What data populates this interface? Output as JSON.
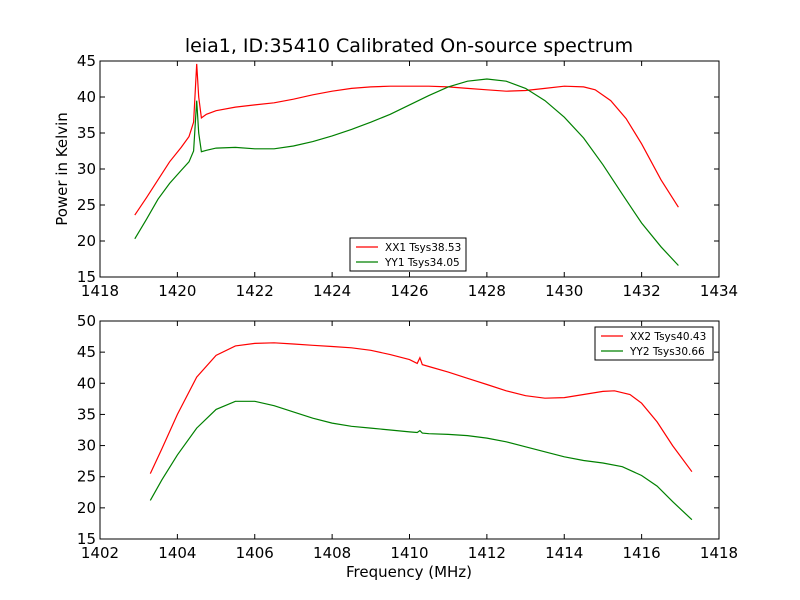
{
  "title": "leia1, ID:35410 Calibrated On-source spectrum",
  "ylabel": "Power in Kelvin",
  "xlabel": "Frequency (MHz)",
  "chart_data": [
    {
      "type": "line",
      "xlim": [
        1418,
        1434
      ],
      "ylim": [
        15,
        45
      ],
      "xticks": [
        1418,
        1420,
        1422,
        1424,
        1426,
        1428,
        1430,
        1432,
        1434
      ],
      "yticks": [
        15,
        20,
        25,
        30,
        35,
        40,
        45
      ],
      "legend_position": "lower-center",
      "series": [
        {
          "name": "XX1 Tsys38.53",
          "color": "#ff0000",
          "x": [
            1418.9,
            1419.2,
            1419.5,
            1419.8,
            1420.1,
            1420.3,
            1420.42,
            1420.5,
            1420.55,
            1420.62,
            1420.75,
            1421.0,
            1421.5,
            1422.0,
            1422.5,
            1423.0,
            1423.5,
            1424.0,
            1424.5,
            1425.0,
            1425.5,
            1426.0,
            1426.5,
            1427.0,
            1427.5,
            1428.0,
            1428.5,
            1429.0,
            1429.5,
            1430.0,
            1430.5,
            1430.8,
            1431.2,
            1431.6,
            1432.0,
            1432.5,
            1432.95
          ],
          "y": [
            23.6,
            26.0,
            28.5,
            31.0,
            33.0,
            34.5,
            36.5,
            44.6,
            40.0,
            37.1,
            37.6,
            38.1,
            38.6,
            38.9,
            39.2,
            39.7,
            40.3,
            40.8,
            41.2,
            41.4,
            41.5,
            41.5,
            41.5,
            41.4,
            41.2,
            41.0,
            40.8,
            40.9,
            41.2,
            41.5,
            41.4,
            41.0,
            39.5,
            37.0,
            33.5,
            28.5,
            24.7
          ]
        },
        {
          "name": "YY1 Tsys34.05",
          "color": "#008000",
          "x": [
            1418.9,
            1419.2,
            1419.5,
            1419.8,
            1420.1,
            1420.3,
            1420.42,
            1420.5,
            1420.55,
            1420.62,
            1420.75,
            1421.0,
            1421.5,
            1422.0,
            1422.5,
            1423.0,
            1423.5,
            1424.0,
            1424.5,
            1425.0,
            1425.5,
            1426.0,
            1426.5,
            1427.0,
            1427.5,
            1428.0,
            1428.5,
            1429.0,
            1429.5,
            1430.0,
            1430.5,
            1431.0,
            1431.5,
            1432.0,
            1432.5,
            1432.95
          ],
          "y": [
            20.3,
            23.0,
            25.8,
            28.0,
            29.8,
            31.0,
            32.5,
            39.5,
            35.0,
            32.4,
            32.6,
            32.9,
            33.0,
            32.8,
            32.8,
            33.2,
            33.8,
            34.6,
            35.5,
            36.5,
            37.6,
            38.9,
            40.2,
            41.4,
            42.2,
            42.5,
            42.2,
            41.2,
            39.5,
            37.2,
            34.3,
            30.6,
            26.5,
            22.5,
            19.2,
            16.6
          ]
        }
      ]
    },
    {
      "type": "line",
      "xlim": [
        1402,
        1418
      ],
      "ylim": [
        15,
        50
      ],
      "xticks": [
        1402,
        1404,
        1406,
        1408,
        1410,
        1412,
        1414,
        1416,
        1418
      ],
      "yticks": [
        15,
        20,
        25,
        30,
        35,
        40,
        45,
        50
      ],
      "legend_position": "upper-right",
      "series": [
        {
          "name": "XX2 Tsys40.43",
          "color": "#ff0000",
          "x": [
            1403.3,
            1403.6,
            1404.0,
            1404.5,
            1405.0,
            1405.5,
            1406.0,
            1406.5,
            1407.0,
            1407.5,
            1408.0,
            1408.5,
            1409.0,
            1409.5,
            1410.0,
            1410.2,
            1410.27,
            1410.33,
            1410.5,
            1411.0,
            1411.5,
            1412.0,
            1412.5,
            1413.0,
            1413.5,
            1414.0,
            1414.5,
            1415.0,
            1415.3,
            1415.7,
            1416.0,
            1416.4,
            1416.8,
            1417.3
          ],
          "y": [
            25.5,
            29.5,
            35.0,
            41.0,
            44.5,
            46.0,
            46.4,
            46.5,
            46.3,
            46.1,
            45.9,
            45.7,
            45.3,
            44.6,
            43.8,
            43.2,
            44.1,
            43.0,
            42.7,
            41.8,
            40.8,
            39.8,
            38.8,
            38.0,
            37.6,
            37.7,
            38.2,
            38.7,
            38.8,
            38.2,
            36.8,
            33.8,
            30.0,
            25.8
          ]
        },
        {
          "name": "YY2 Tsys30.66",
          "color": "#008000",
          "x": [
            1403.3,
            1403.6,
            1404.0,
            1404.5,
            1405.0,
            1405.5,
            1406.0,
            1406.5,
            1407.0,
            1407.5,
            1408.0,
            1408.5,
            1409.0,
            1409.5,
            1410.0,
            1410.2,
            1410.27,
            1410.33,
            1410.5,
            1411.0,
            1411.5,
            1412.0,
            1412.5,
            1413.0,
            1413.5,
            1414.0,
            1414.5,
            1415.0,
            1415.5,
            1416.0,
            1416.4,
            1416.8,
            1417.3
          ],
          "y": [
            21.2,
            24.5,
            28.5,
            32.8,
            35.8,
            37.1,
            37.1,
            36.4,
            35.4,
            34.4,
            33.6,
            33.1,
            32.8,
            32.5,
            32.2,
            32.1,
            32.4,
            32.0,
            31.9,
            31.8,
            31.6,
            31.2,
            30.6,
            29.8,
            29.0,
            28.2,
            27.6,
            27.2,
            26.6,
            25.2,
            23.5,
            21.0,
            18.1
          ]
        }
      ]
    }
  ]
}
